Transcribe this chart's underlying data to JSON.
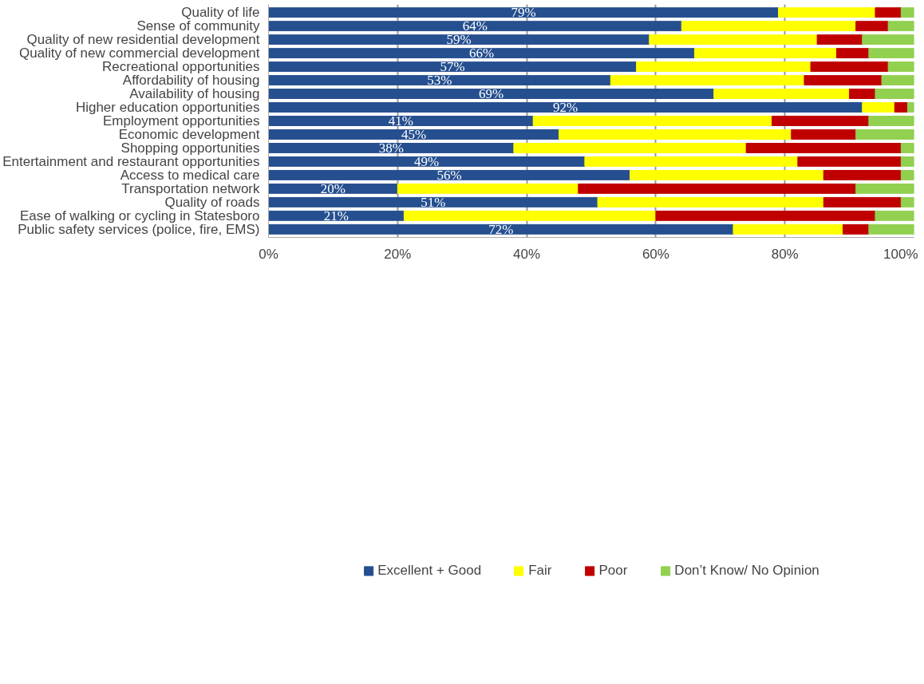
{
  "chart_data": {
    "type": "bar",
    "orientation": "horizontal",
    "stacked": true,
    "categories": [
      "Quality of life",
      "Sense of community",
      "Quality of new residential development",
      "Quality of new commercial development",
      "Recreational opportunities",
      "Affordability of housing",
      "Availability of housing",
      "Higher education opportunities",
      "Employment opportunities",
      "Economic development",
      "Shopping opportunities",
      "Entertainment and restaurant opportunities",
      "Access to medical care",
      "Transportation network",
      "Quality of roads",
      "Ease of walking or cycling in Statesboro",
      "Public safety services (police, fire, EMS)"
    ],
    "series": [
      {
        "name": "Excellent + Good",
        "color": "#254f8f",
        "values": [
          79,
          64,
          59,
          66,
          57,
          53,
          69,
          92,
          41,
          45,
          38,
          49,
          56,
          20,
          51,
          21,
          72
        ],
        "value_labels": [
          "79%",
          "64%",
          "59%",
          "66%",
          "57%",
          "53%",
          "69%",
          "92%",
          "41%",
          "45%",
          "38%",
          "49%",
          "56%",
          "20%",
          "51%",
          "21%",
          "72%"
        ]
      },
      {
        "name": "Fair",
        "color": "#ffff00",
        "values": [
          15,
          27,
          26,
          22,
          27,
          30,
          21,
          5,
          37,
          36,
          36,
          33,
          30,
          28,
          35,
          39,
          17
        ]
      },
      {
        "name": "Poor",
        "color": "#c00000",
        "values": [
          4,
          5,
          7,
          5,
          12,
          12,
          4,
          2,
          15,
          10,
          24,
          16,
          12,
          43,
          12,
          34,
          4
        ]
      },
      {
        "name": "Don’t Know/ No Opinion",
        "color": "#92d050",
        "values": [
          2,
          4,
          8,
          7,
          4,
          5,
          6,
          1,
          7,
          9,
          2,
          2,
          2,
          9,
          2,
          6,
          7
        ]
      }
    ],
    "xlim": [
      0,
      100
    ],
    "xticks": [
      {
        "value": 0,
        "label": "0%"
      },
      {
        "value": 20,
        "label": "20%"
      },
      {
        "value": 40,
        "label": "40%"
      },
      {
        "value": 60,
        "label": "60%"
      },
      {
        "value": 80,
        "label": "80%"
      },
      {
        "value": 100,
        "label": "100%"
      }
    ],
    "grid": "x",
    "legend": "bottom"
  }
}
